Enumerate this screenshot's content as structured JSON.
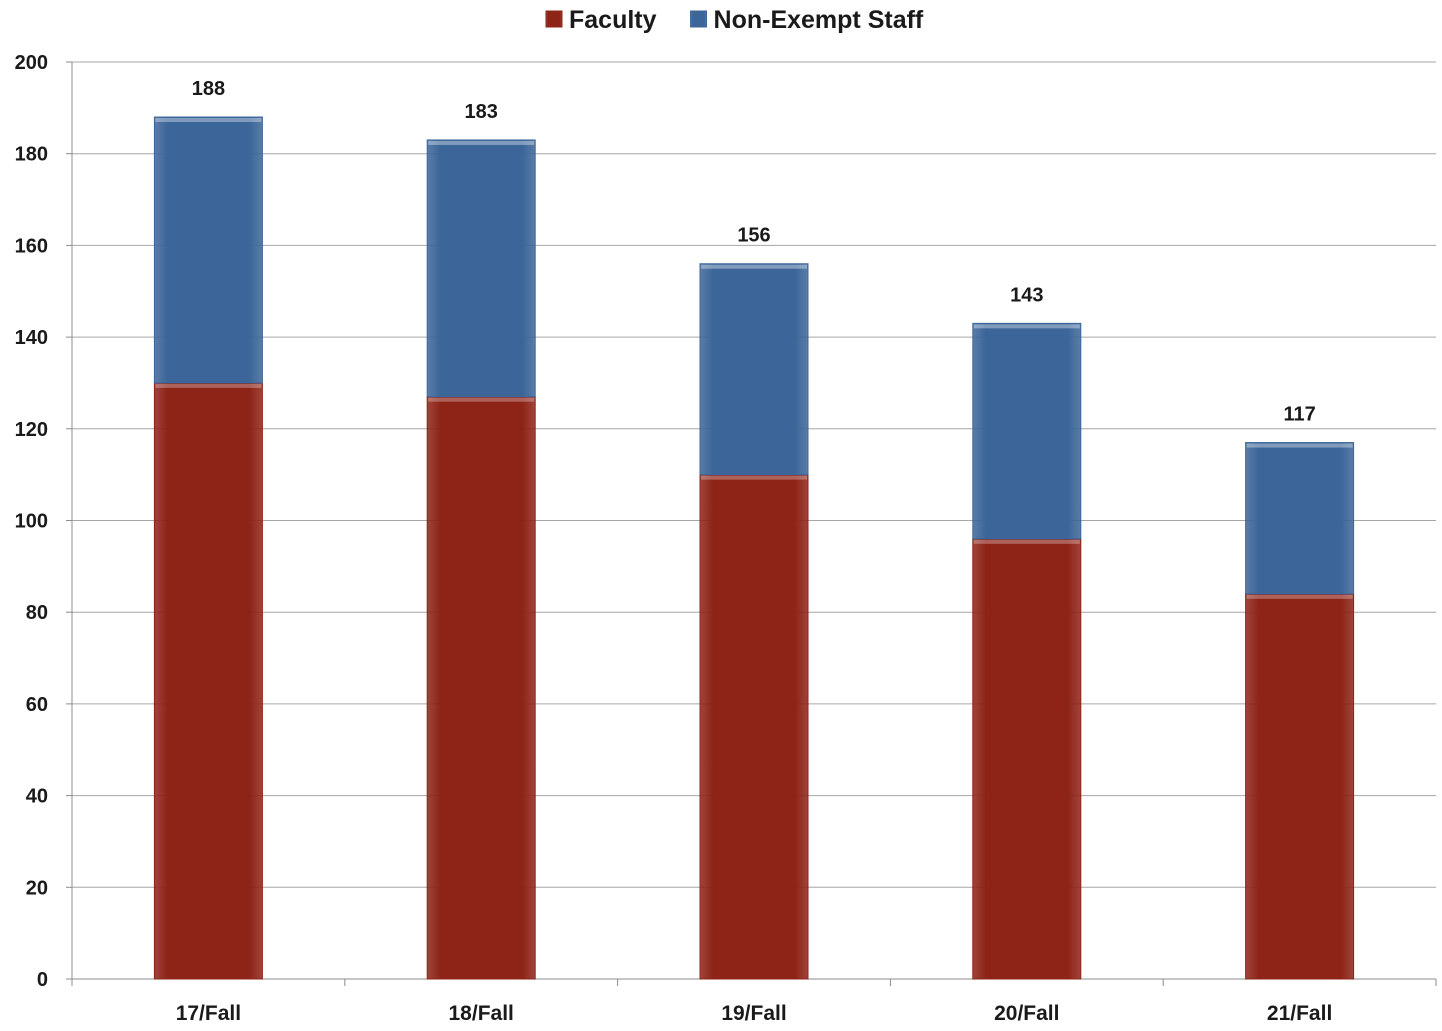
{
  "chart_data": {
    "type": "bar",
    "stacked": true,
    "categories": [
      "17/Fall",
      "18/Fall",
      "19/Fall",
      "20/Fall",
      "21/Fall"
    ],
    "series": [
      {
        "name": "Faculty",
        "values": [
          130,
          127,
          110,
          96,
          84
        ],
        "color": "#8e2418"
      },
      {
        "name": "Non-Exempt Staff",
        "values": [
          58,
          56,
          46,
          47,
          33
        ],
        "color": "#3c6699"
      }
    ],
    "totals": [
      188,
      183,
      156,
      143,
      117
    ],
    "ylim": [
      0,
      200
    ],
    "yticks": [
      0,
      20,
      40,
      60,
      80,
      100,
      120,
      140,
      160,
      180,
      200
    ],
    "grid": true,
    "legend_position": "top-center",
    "title": "",
    "xlabel": "",
    "ylabel": ""
  }
}
